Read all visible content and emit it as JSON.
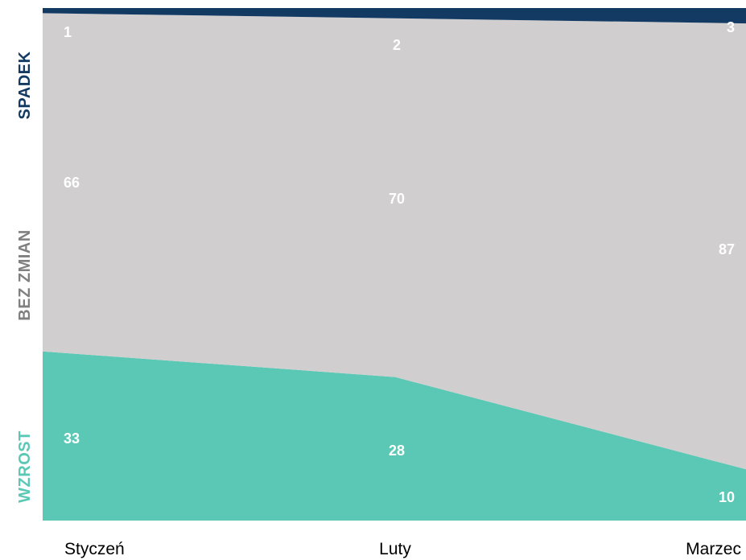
{
  "chart_data": {
    "type": "area",
    "stacked": "percent",
    "categories": [
      "Styczeń",
      "Luty",
      "Marzec"
    ],
    "series": [
      {
        "name": "WZROST",
        "values": [
          33,
          28,
          10
        ],
        "color": "#5ac8b4"
      },
      {
        "name": "BEZ ZMIAN",
        "values": [
          66,
          70,
          87
        ],
        "color": "#d0cecf",
        "label_color": "#808080"
      },
      {
        "name": "SPADEK",
        "values": [
          1,
          2,
          3
        ],
        "color": "#123a63"
      }
    ],
    "ylim": [
      0,
      100
    ],
    "grid": false,
    "legend": "none"
  }
}
